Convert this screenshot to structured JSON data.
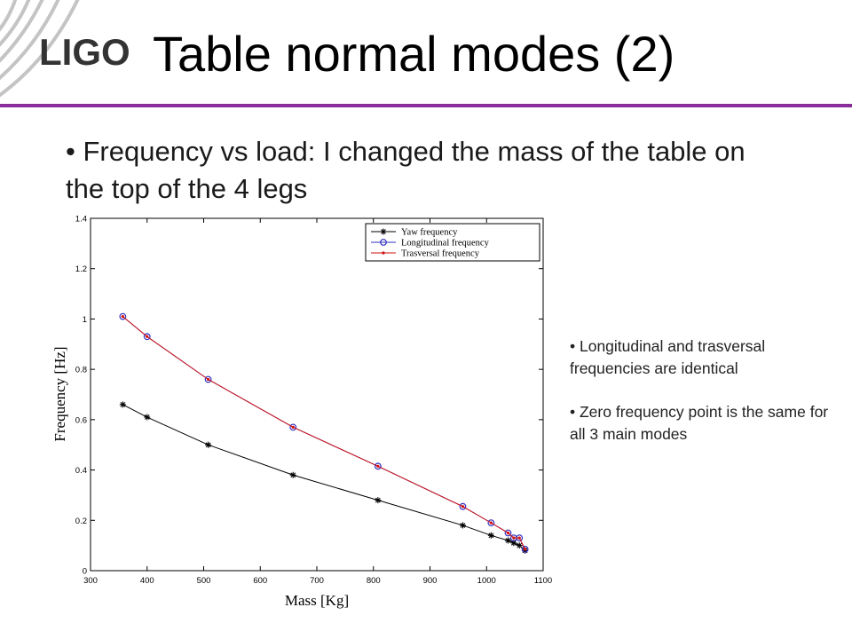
{
  "slide": {
    "logo_text": "LIGO",
    "title": "Table normal modes (2)",
    "bullet_main": "• Frequency vs load: I changed the mass of the table on the top of the 4 legs",
    "notes": [
      "• Longitudinal and trasversal frequencies are identical",
      "• Zero frequency point is the same for all 3 main modes"
    ],
    "colors": {
      "rule": "#8a2e9c",
      "logo_text": "#333333"
    }
  },
  "chart_data": {
    "type": "line",
    "title": "",
    "xlabel": "Mass [Kg]",
    "ylabel": "Frequency [Hz]",
    "xlim": [
      300,
      1100
    ],
    "ylim": [
      0,
      1.4
    ],
    "xticks": [
      300,
      400,
      500,
      600,
      700,
      800,
      900,
      1000,
      1100
    ],
    "yticks": [
      0,
      0.2,
      0.4,
      0.6,
      0.8,
      1,
      1.2,
      1.4
    ],
    "ytick_labels": [
      "0",
      "0.2",
      "0.4",
      "0.6",
      "0.8",
      "1",
      "1.2",
      "1.4"
    ],
    "grid": false,
    "legend": "top-right",
    "series": [
      {
        "name": "Yaw frequency",
        "color": "#000000",
        "marker": "star",
        "x": [
          357,
          400,
          508,
          658,
          808,
          958,
          1008,
          1038,
          1048,
          1058,
          1068
        ],
        "y": [
          0.66,
          0.61,
          0.5,
          0.38,
          0.28,
          0.18,
          0.14,
          0.12,
          0.11,
          0.1,
          0.08
        ]
      },
      {
        "name": "Longitudinal frequency",
        "color": "#3030c0",
        "marker": "circle",
        "x": [
          357,
          400,
          508,
          658,
          808,
          958,
          1008,
          1038,
          1048,
          1058,
          1068
        ],
        "y": [
          1.01,
          0.93,
          0.76,
          0.57,
          0.415,
          0.255,
          0.19,
          0.15,
          0.13,
          0.13,
          0.085
        ]
      },
      {
        "name": "Trasversal frequency",
        "color": "#d01010",
        "marker": "dot",
        "x": [
          357,
          400,
          508,
          658,
          808,
          958,
          1008,
          1038,
          1048,
          1058,
          1068
        ],
        "y": [
          1.01,
          0.93,
          0.76,
          0.57,
          0.415,
          0.255,
          0.19,
          0.15,
          0.13,
          0.13,
          0.085
        ]
      }
    ]
  }
}
